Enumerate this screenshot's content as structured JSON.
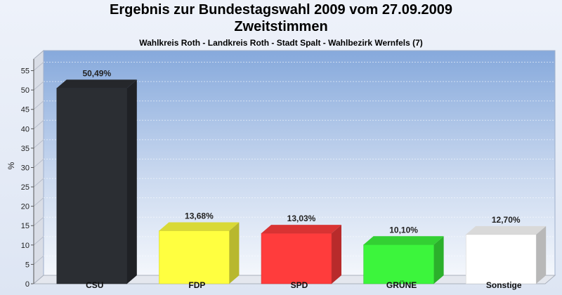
{
  "chart_data": {
    "type": "bar",
    "title": "Ergebnis zur Bundestagswahl 2009 vom 27.09.2009",
    "subtitle": "Zweitstimmen",
    "caption": "Wahlkreis Roth - Landkreis Roth - Stadt Spalt - Wahlbezirk Wernfels (7)",
    "xlabel": "",
    "ylabel": "%",
    "ylim": [
      0,
      58
    ],
    "yticks": [
      0,
      5,
      10,
      15,
      20,
      25,
      30,
      35,
      40,
      45,
      50,
      55
    ],
    "grid": true,
    "categories": [
      "CSU",
      "FDP",
      "SPD",
      "GRÜNE",
      "Sonstige"
    ],
    "values": [
      50.49,
      13.68,
      13.03,
      10.1,
      12.7
    ],
    "value_labels": [
      "50,49%",
      "13,68%",
      "13,03%",
      "10,10%",
      "12,70%"
    ],
    "colors": [
      "#2b2e33",
      "#ffff40",
      "#ff3c3c",
      "#3cf53c",
      "#ffffff"
    ]
  }
}
